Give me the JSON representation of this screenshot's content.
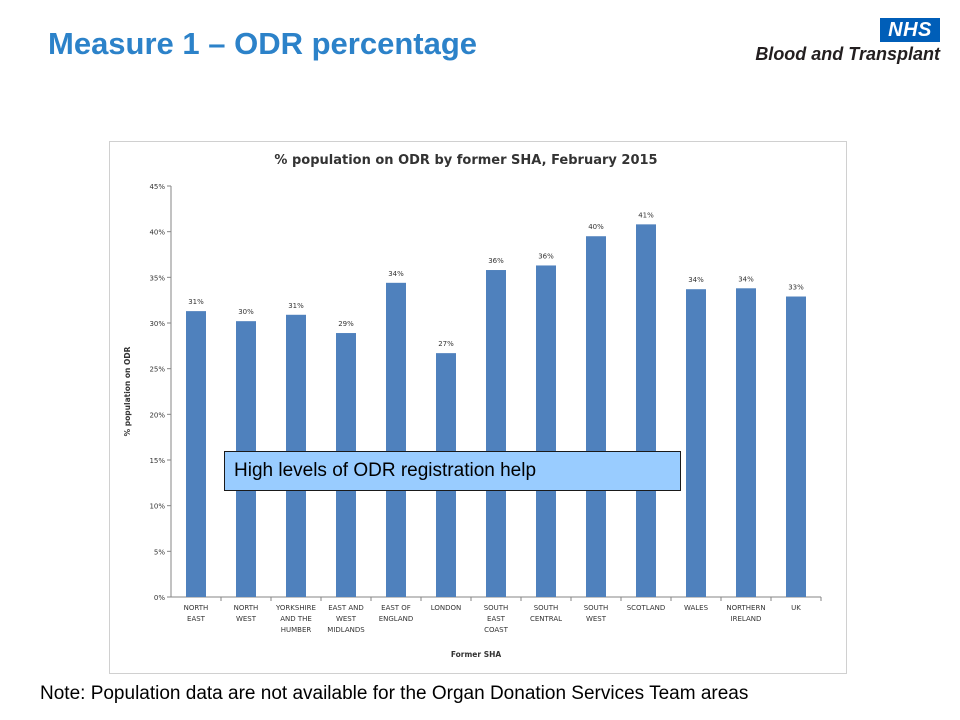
{
  "slide": {
    "title": "Measure 1 – ODR percentage",
    "logo_badge": "NHS",
    "logo_text": "Blood and Transplant",
    "callout": "High levels of ODR registration help",
    "note": "Note: Population data are not available for the Organ Donation Services Team areas"
  },
  "colors": {
    "title": "#2c82c9",
    "bar": "#4f81bd",
    "callout_bg": "#99ccff",
    "nhs_blue": "#005eb8"
  },
  "chart_data": {
    "type": "bar",
    "title": "% population on ODR by former SHA, February 2015",
    "xlabel": "Former SHA",
    "ylabel": "% population on ODR",
    "ylim": [
      0,
      45
    ],
    "yticks": [
      "0%",
      "5%",
      "10%",
      "15%",
      "20%",
      "25%",
      "30%",
      "35%",
      "40%",
      "45%"
    ],
    "grid": false,
    "legend": "none",
    "categories": [
      [
        "NORTH",
        "EAST"
      ],
      [
        "NORTH",
        "WEST"
      ],
      [
        "YORKSHIRE",
        "AND THE",
        "HUMBER"
      ],
      [
        "EAST AND",
        "WEST",
        "MIDLANDS"
      ],
      [
        "EAST OF",
        "ENGLAND"
      ],
      [
        "LONDON"
      ],
      [
        "SOUTH",
        "EAST",
        "COAST"
      ],
      [
        "SOUTH",
        "CENTRAL"
      ],
      [
        "SOUTH",
        "WEST"
      ],
      [
        "SCOTLAND"
      ],
      [
        "WALES"
      ],
      [
        "NORTHERN",
        "IRELAND"
      ],
      [
        "UK"
      ]
    ],
    "values": [
      31.3,
      30.2,
      30.9,
      28.9,
      34.4,
      26.7,
      35.8,
      36.3,
      39.5,
      40.8,
      33.7,
      33.8,
      32.9
    ],
    "data_labels": [
      "31%",
      "30%",
      "31%",
      "29%",
      "34%",
      "27%",
      "36%",
      "36%",
      "40%",
      "41%",
      "34%",
      "34%",
      "33%"
    ]
  }
}
